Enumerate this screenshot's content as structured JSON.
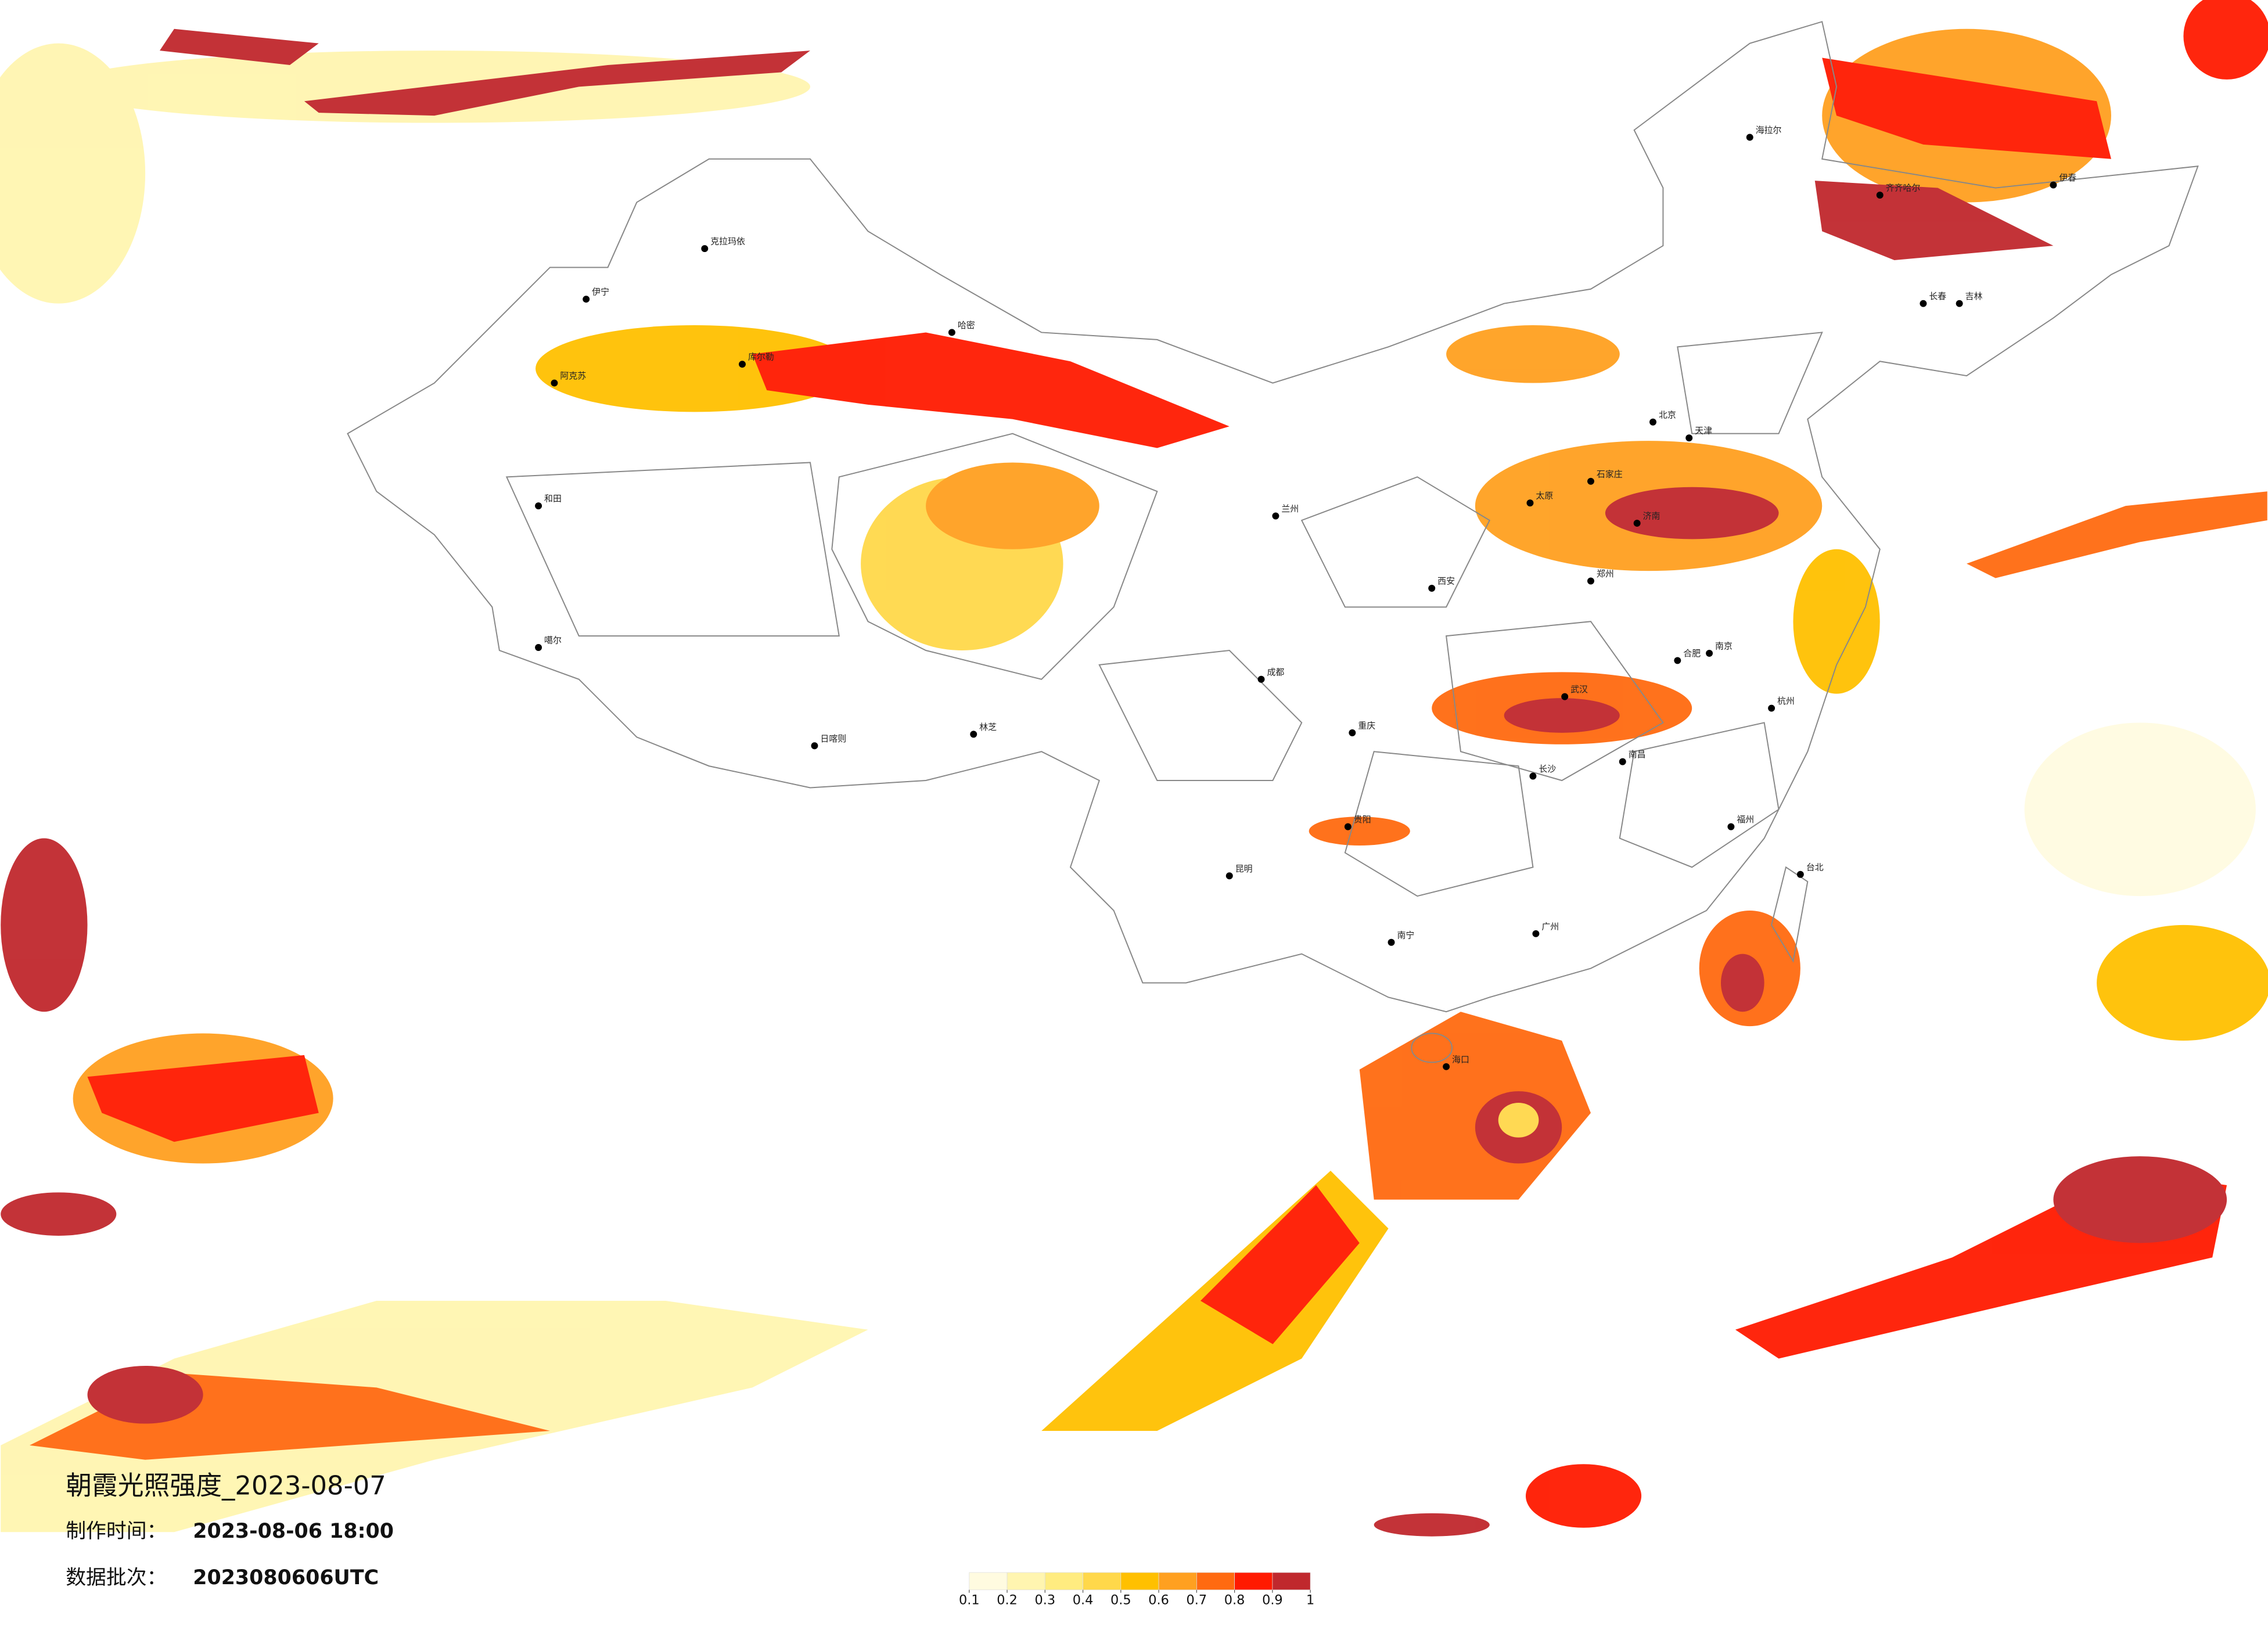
{
  "header": {
    "title": "朝霞光照强度_2023-08-07",
    "made_label": "制作时间：",
    "made_time": "2023-08-06 18:00",
    "batch_label": "数据批次：",
    "batch": "2023080606UTC"
  },
  "legend": {
    "colors": [
      "#fffbe0",
      "#fff5b0",
      "#ffec80",
      "#ffd84a",
      "#ffc000",
      "#ffa020",
      "#ff6a10",
      "#ff1a00",
      "#c0282d"
    ],
    "ticks": [
      0.1,
      0.2,
      0.3,
      0.4,
      0.5,
      0.6,
      0.7,
      0.8,
      0.9,
      1
    ]
  },
  "cities": [
    "克拉玛依",
    "伊宁",
    "阿克苏",
    "和田",
    "哈密",
    "库尔勒",
    "噶尔",
    "日喀则",
    "林芝",
    "海拉尔",
    "齐齐哈尔",
    "伊春",
    "长春",
    "吉林",
    "北京",
    "天津",
    "石家庄",
    "太原",
    "郑州",
    "西安",
    "兰州",
    "成都",
    "重庆",
    "贵阳",
    "昆明",
    "南宁",
    "海口",
    "广州",
    "福州",
    "杭州",
    "南京",
    "武汉",
    "长沙",
    "南昌",
    "合肥",
    "济南",
    "台北"
  ]
}
